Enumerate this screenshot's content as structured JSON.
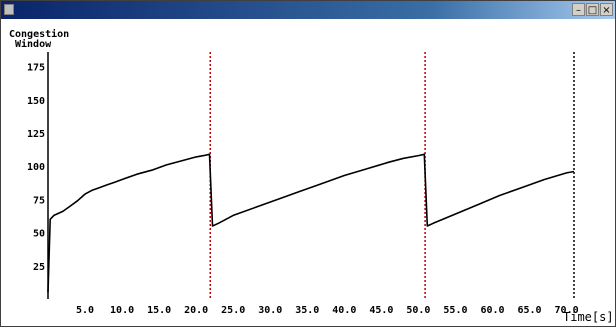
{
  "window": {
    "minimize_symbol": "–",
    "maximize_symbol": "□",
    "close_symbol": "×"
  },
  "colors": {
    "titlebar_start": "#0a246a",
    "titlebar_end": "#a6caf0",
    "curve": "#000000",
    "loss_marker": "#c00000",
    "current_time_marker": "#000000"
  },
  "chart_data": {
    "type": "line",
    "title": "",
    "ylabel_line1": "Congestion",
    "ylabel_line2": "Window",
    "xlabel": "Time[s]",
    "xlim": [
      0,
      71
    ],
    "ylim": [
      0,
      180
    ],
    "grid": false,
    "legend": "none",
    "yticks": [
      25,
      50,
      75,
      100,
      125,
      150,
      175
    ],
    "xticks": [
      "5.0",
      "10.0",
      "15.0",
      "20.0",
      "25.0",
      "30.0",
      "35.0",
      "40.0",
      "45.0",
      "50.0",
      "55.0",
      "60.0",
      "65.0",
      "70.0"
    ],
    "xtick_values": [
      5,
      10,
      15,
      20,
      25,
      30,
      35,
      40,
      45,
      50,
      55,
      60,
      65,
      70
    ],
    "series": [
      {
        "x": [
          0,
          0.3,
          0.8,
          2,
          3,
          4,
          5,
          6,
          7,
          8,
          9,
          10,
          12,
          14,
          16,
          18,
          20,
          21,
          21.8,
          22.2,
          23,
          25,
          28,
          31,
          34,
          37,
          40,
          43,
          46,
          48,
          50,
          50.8,
          51.2,
          52,
          55,
          58,
          61,
          64,
          67,
          70,
          71
        ],
        "y": [
          5,
          60,
          63,
          66,
          70,
          74,
          79,
          82,
          84,
          86,
          88,
          90,
          94,
          97,
          101,
          104,
          107,
          108,
          109,
          55,
          57,
          63,
          69,
          75,
          81,
          87,
          93,
          98,
          103,
          106,
          108,
          109,
          55,
          57,
          64,
          71,
          78,
          84,
          90,
          95,
          96
        ]
      }
    ],
    "loss_events": [
      21.9,
      50.9
    ],
    "current_time": 71
  }
}
